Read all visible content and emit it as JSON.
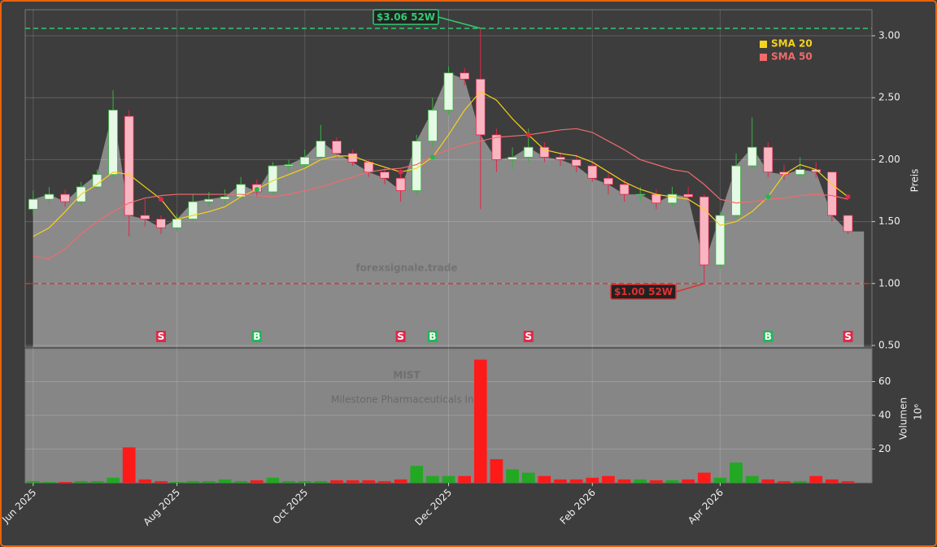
{
  "chart_data": {
    "type": "candlestick",
    "watermark": "forexsignale.trade",
    "ticker": "MIST",
    "company": "Milestone Pharmaceuticals Inc.",
    "y_label": "Preis",
    "volume_label": "Volumen",
    "volume_scale_label": "10⁶",
    "categories": [
      "Jun 2025",
      null,
      null,
      null,
      null,
      null,
      null,
      null,
      null,
      "Aug 2025",
      null,
      null,
      null,
      null,
      null,
      null,
      null,
      "Oct 2025",
      null,
      null,
      null,
      null,
      null,
      null,
      null,
      null,
      "Dec 2025",
      null,
      null,
      null,
      null,
      null,
      null,
      null,
      null,
      "Feb 2026",
      null,
      null,
      null,
      null,
      null,
      null,
      null,
      "Apr 2026",
      null,
      null,
      null,
      null,
      null,
      null,
      null,
      null
    ],
    "open": [
      1.6,
      1.68,
      1.72,
      1.66,
      1.78,
      1.88,
      2.35,
      1.55,
      1.52,
      1.45,
      1.52,
      1.66,
      1.68,
      1.7,
      1.8,
      1.74,
      1.95,
      1.96,
      2.02,
      2.15,
      2.05,
      1.98,
      1.9,
      1.85,
      1.75,
      2.15,
      2.4,
      2.7,
      2.65,
      2.2,
      2.0,
      2.02,
      2.1,
      2.02,
      2.0,
      1.95,
      1.85,
      1.8,
      1.72,
      1.72,
      1.65,
      1.72,
      1.7,
      1.15,
      1.55,
      1.95,
      2.1,
      1.9,
      1.88,
      1.92,
      1.9,
      1.55
    ],
    "high": [
      1.75,
      1.78,
      1.76,
      1.82,
      1.92,
      2.56,
      2.4,
      1.68,
      1.55,
      1.56,
      1.72,
      1.74,
      1.76,
      1.86,
      1.84,
      1.98,
      2.0,
      2.08,
      2.28,
      2.18,
      2.08,
      2.0,
      1.94,
      1.88,
      2.2,
      2.5,
      2.75,
      2.74,
      3.06,
      2.25,
      2.1,
      2.25,
      2.14,
      2.06,
      2.04,
      1.98,
      1.9,
      1.84,
      1.78,
      1.76,
      1.78,
      1.78,
      1.72,
      1.58,
      2.05,
      2.34,
      2.14,
      1.96,
      2.02,
      1.98,
      1.9,
      1.55
    ],
    "low": [
      1.55,
      1.64,
      1.62,
      1.63,
      1.76,
      1.85,
      1.38,
      1.46,
      1.4,
      1.42,
      1.5,
      1.62,
      1.64,
      1.68,
      1.7,
      1.72,
      1.9,
      1.93,
      2.0,
      2.02,
      1.95,
      1.86,
      1.8,
      1.66,
      1.72,
      2.1,
      2.36,
      2.6,
      1.6,
      1.9,
      1.92,
      1.98,
      1.98,
      1.95,
      1.9,
      1.82,
      1.72,
      1.66,
      1.66,
      1.6,
      1.62,
      1.66,
      1.0,
      1.12,
      1.52,
      1.92,
      1.86,
      1.84,
      1.85,
      1.85,
      1.5,
      1.4
    ],
    "close": [
      1.68,
      1.72,
      1.66,
      1.78,
      1.88,
      2.4,
      1.55,
      1.52,
      1.45,
      1.52,
      1.66,
      1.68,
      1.7,
      1.8,
      1.74,
      1.95,
      1.96,
      2.02,
      2.15,
      2.05,
      1.98,
      1.9,
      1.85,
      1.75,
      2.15,
      2.4,
      2.7,
      2.65,
      2.2,
      2.0,
      2.02,
      2.1,
      2.02,
      2.0,
      1.95,
      1.85,
      1.8,
      1.72,
      1.72,
      1.65,
      1.72,
      1.7,
      1.15,
      1.55,
      1.95,
      2.1,
      1.9,
      1.88,
      1.92,
      1.9,
      1.55,
      1.42
    ],
    "volume": [
      1,
      0.5,
      0.5,
      1,
      1,
      3,
      21,
      2,
      1,
      0.5,
      1,
      1,
      2,
      1,
      1.5,
      3,
      1,
      1,
      1,
      1.5,
      1.5,
      1.5,
      1,
      2,
      10,
      4,
      4,
      4,
      73,
      14,
      8,
      6,
      4,
      2,
      2,
      3,
      4,
      2,
      2,
      1.5,
      1.5,
      2,
      6,
      3,
      12,
      4,
      2,
      1,
      1,
      4,
      2,
      1
    ],
    "series": [
      {
        "name": "SMA 20",
        "color": "#f5d21b",
        "values": [
          1.38,
          1.45,
          1.58,
          1.72,
          1.8,
          1.9,
          1.88,
          1.78,
          1.68,
          1.52,
          1.55,
          1.58,
          1.62,
          1.7,
          1.76,
          1.83,
          1.88,
          1.93,
          2.0,
          2.03,
          2.03,
          1.98,
          1.94,
          1.9,
          1.93,
          2.02,
          2.2,
          2.4,
          2.55,
          2.48,
          2.33,
          2.2,
          2.08,
          2.05,
          2.03,
          1.98,
          1.9,
          1.82,
          1.76,
          1.72,
          1.7,
          1.68,
          1.6,
          1.47,
          1.5,
          1.58,
          1.7,
          1.88,
          1.96,
          1.92,
          1.8,
          1.7
        ]
      },
      {
        "name": "SMA 50",
        "color": "#f26b6b",
        "values": [
          1.22,
          1.2,
          1.28,
          1.4,
          1.5,
          1.58,
          1.65,
          1.69,
          1.71,
          1.72,
          1.72,
          1.72,
          1.72,
          1.72,
          1.71,
          1.7,
          1.72,
          1.75,
          1.78,
          1.82,
          1.86,
          1.9,
          1.92,
          1.93,
          1.96,
          2.03,
          2.08,
          2.12,
          2.15,
          2.18,
          2.19,
          2.2,
          2.22,
          2.24,
          2.25,
          2.22,
          2.15,
          2.08,
          2.0,
          1.96,
          1.92,
          1.9,
          1.8,
          1.68,
          1.65,
          1.66,
          1.68,
          1.69,
          1.71,
          1.72,
          1.71,
          1.68
        ]
      }
    ],
    "up_color": "#3cb043",
    "down_color": "#e0284a",
    "signals": [
      {
        "index": 8,
        "label": "S",
        "color": "#e0284a"
      },
      {
        "index": 14,
        "label": "B",
        "color": "#1db954"
      },
      {
        "index": 23,
        "label": "S",
        "color": "#e0284a"
      },
      {
        "index": 25,
        "label": "B",
        "color": "#1db954"
      },
      {
        "index": 31,
        "label": "S",
        "color": "#e0284a"
      },
      {
        "index": 46,
        "label": "B",
        "color": "#1db954"
      },
      {
        "index": 51,
        "label": "S",
        "color": "#e0284a"
      }
    ],
    "annotations": [
      {
        "label": "$3.06 52W",
        "value": 3.06,
        "color": "#2ecc71"
      },
      {
        "label": "$1.00 52W",
        "value": 1.0,
        "color": "#e03030"
      }
    ],
    "ylim": [
      0.487,
      3.21
    ],
    "yticks": [
      {
        "value": 0.5,
        "label": "0.50"
      },
      {
        "value": 1,
        "label": "1.00"
      },
      {
        "value": 1.5,
        "label": "1.50"
      },
      {
        "value": 2,
        "label": "2.00"
      },
      {
        "value": 2.5,
        "label": "2.50"
      },
      {
        "value": 3,
        "label": "3.00"
      }
    ],
    "y2lim": [
      0,
      79.5
    ],
    "y2ticks": [
      20,
      40,
      60
    ],
    "grid": true,
    "legend": "upper right"
  }
}
